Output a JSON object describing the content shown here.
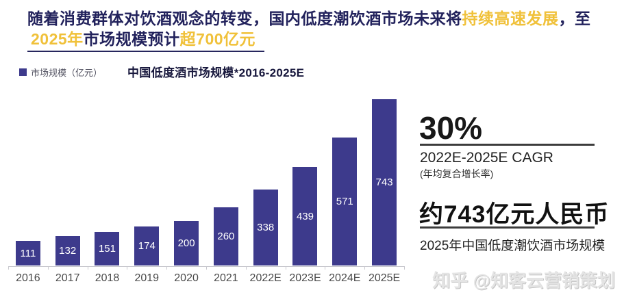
{
  "headline": {
    "line1_text": "随着消费群体对饮酒观念的转变，国内低度潮饮酒市场未来将",
    "line1_highlight": "持续高速发展",
    "line1_suffix": "，至",
    "line2_highlight1": "2025年",
    "line2_text": "市场规模预计",
    "line2_highlight2": "超700亿元",
    "dark_color": "#22225c",
    "highlight_color": "#f0c13a"
  },
  "legend": {
    "swatch_color": "#3d3a8c",
    "label": "市场规模（亿元）"
  },
  "chart_data": {
    "type": "bar",
    "title": "中国低度酒市场规模*2016-2025E",
    "categories": [
      "2016",
      "2017",
      "2018",
      "2019",
      "2020",
      "2021",
      "2022E",
      "2023E",
      "2024E",
      "2025E"
    ],
    "values": [
      111,
      132,
      151,
      174,
      200,
      260,
      338,
      439,
      571,
      743
    ],
    "series_name": "市场规模（亿元）",
    "unit": "亿元",
    "bar_color": "#3d3a8c",
    "value_label_color": "#ffffff",
    "value_labels": true,
    "ylim": [
      0,
      743
    ],
    "grid": false,
    "legend_position": "top-left"
  },
  "stats": {
    "cagr_value": "30%",
    "cagr_label": "2022E-2025E CAGR",
    "cagr_sublabel": "(年均复合增长率)",
    "market_value": "约743亿元人民币",
    "market_label": "2025年中国低度潮饮酒市场规模"
  },
  "watermark": "知乎 @知客云营销策划"
}
